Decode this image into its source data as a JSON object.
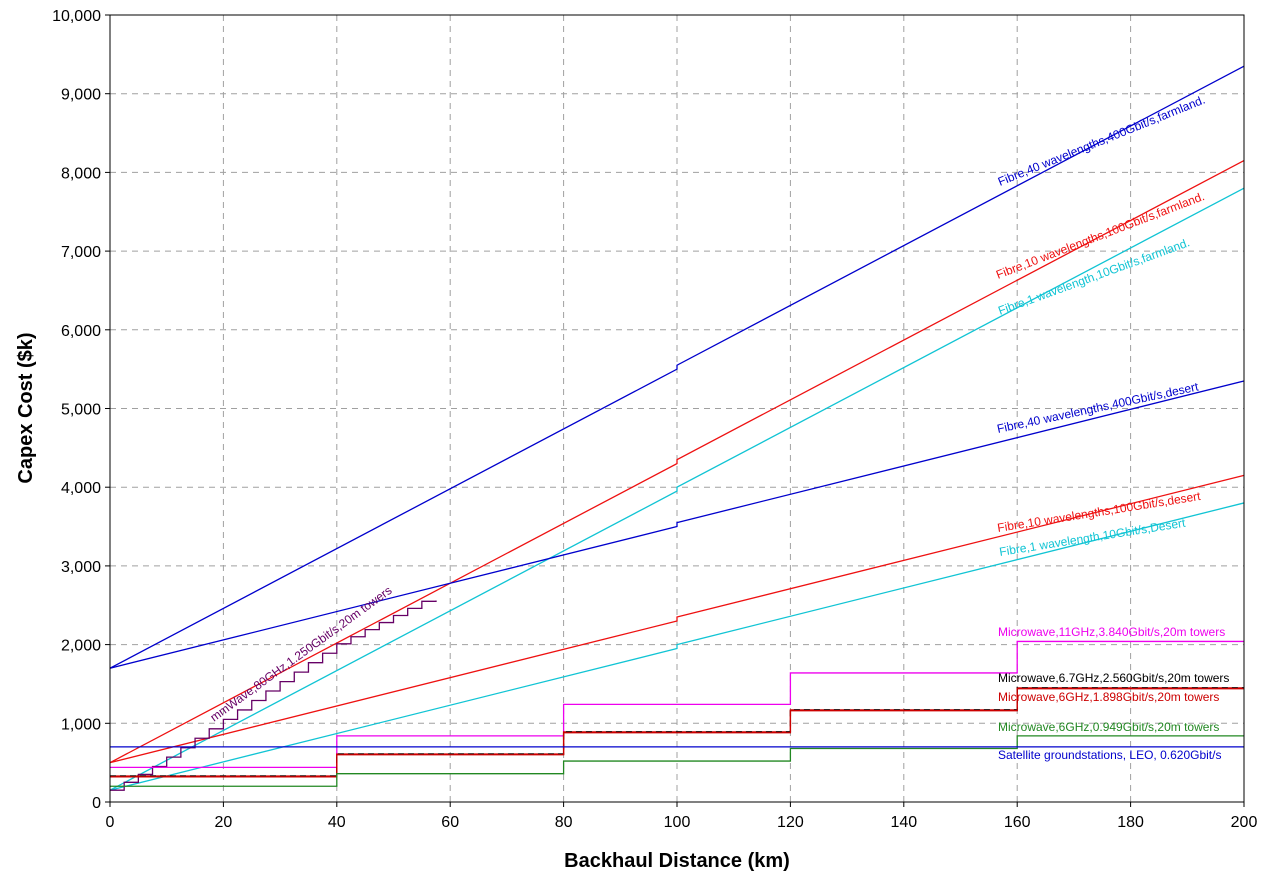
{
  "chart_data": {
    "type": "line",
    "xlabel": "Backhaul Distance (km)",
    "ylabel": "Capex Cost ($k)",
    "xlim": [
      0,
      200
    ],
    "ylim": [
      0,
      10000
    ],
    "x_ticks": [
      "0",
      "20",
      "40",
      "60",
      "80",
      "100",
      "120",
      "140",
      "160",
      "180",
      "200"
    ],
    "y_ticks": [
      "0",
      "1,000",
      "2,000",
      "3,000",
      "4,000",
      "5,000",
      "6,000",
      "7,000",
      "8,000",
      "9,000",
      "10,000"
    ],
    "grid": true,
    "series": [
      {
        "name": "Fibre,40 wavelengths,400Gbit/s,farmland.",
        "color": "#0000cc",
        "step": false,
        "dashed": false,
        "x": [
          0,
          100,
          100,
          200
        ],
        "y": [
          1700,
          5500,
          5550,
          9350
        ]
      },
      {
        "name": "Fibre,10 wavelengths,100Gbit/s,farmland.",
        "color": "#ee1111",
        "step": false,
        "dashed": false,
        "x": [
          0,
          100,
          100,
          200
        ],
        "y": [
          500,
          4300,
          4350,
          8150
        ]
      },
      {
        "name": "Fibre,1 wavelength,10Gbit/s,farmland.",
        "color": "#11c4d4",
        "step": false,
        "dashed": false,
        "x": [
          0,
          100,
          100,
          200
        ],
        "y": [
          150,
          3950,
          4000,
          7800
        ]
      },
      {
        "name": "Fibre,40 wavelengths,400Gbit/s,desert",
        "color": "#0000cc",
        "step": false,
        "dashed": false,
        "x": [
          0,
          100,
          100,
          200
        ],
        "y": [
          1700,
          3500,
          3550,
          5350
        ]
      },
      {
        "name": "Fibre,10 wavelengths,100Gbit/s,desert",
        "color": "#ee1111",
        "step": false,
        "dashed": false,
        "x": [
          0,
          100,
          100,
          200
        ],
        "y": [
          500,
          2300,
          2350,
          4150
        ]
      },
      {
        "name": "Fibre,1 wavelength,10Gbit/s,Desert",
        "color": "#11c4d4",
        "step": false,
        "dashed": false,
        "x": [
          0,
          100,
          100,
          200
        ],
        "y": [
          150,
          1950,
          2000,
          3800
        ]
      },
      {
        "name": "mmWave,80GHz,1.250Gbit/s,20m towers",
        "color": "#660066",
        "step": true,
        "dashed": false,
        "x": [
          0,
          2.5,
          5,
          7.5,
          10,
          12.5,
          15,
          17.5,
          20,
          22.5,
          25,
          27.5,
          30,
          32.5,
          35,
          37.5,
          40,
          42.5,
          45,
          47.5,
          50,
          52.5,
          55,
          57.5
        ],
        "y": [
          150,
          250,
          350,
          450,
          570,
          690,
          810,
          930,
          1050,
          1170,
          1290,
          1410,
          1530,
          1650,
          1770,
          1890,
          2010,
          2100,
          2190,
          2280,
          2370,
          2460,
          2550,
          2560
        ]
      },
      {
        "name": "Microwave,11GHz,3.840Gbit/s,20m towers",
        "color": "#ee00ee",
        "step": true,
        "dashed": false,
        "x": [
          0,
          40,
          80,
          120,
          160,
          200
        ],
        "y": [
          440,
          840,
          1240,
          1640,
          2040,
          2040
        ]
      },
      {
        "name": "Microwave,6.7GHz,2.560Gbit/s,20m towers",
        "color": "#000000",
        "step": true,
        "dashed": true,
        "x": [
          0,
          40,
          80,
          120,
          160,
          200
        ],
        "y": [
          330,
          610,
          890,
          1170,
          1450,
          1450
        ]
      },
      {
        "name": "Microwave,6GHz,1.898Gbit/s,20m towers",
        "color": "#cc0000",
        "step": true,
        "dashed": false,
        "x": [
          0,
          40,
          80,
          120,
          160,
          200
        ],
        "y": [
          320,
          600,
          880,
          1160,
          1440,
          1440
        ]
      },
      {
        "name": "Microwave,6GHz,0.949Gbit/s,20m towers",
        "color": "#228822",
        "step": true,
        "dashed": false,
        "x": [
          0,
          40,
          80,
          120,
          160,
          200
        ],
        "y": [
          200,
          360,
          520,
          680,
          840,
          840
        ]
      },
      {
        "name": "Satellite groundstations, LEO, 0.620Gbit/s",
        "color": "#0000cc",
        "step": false,
        "dashed": false,
        "x": [
          0,
          200
        ],
        "y": [
          700,
          700
        ]
      }
    ]
  }
}
